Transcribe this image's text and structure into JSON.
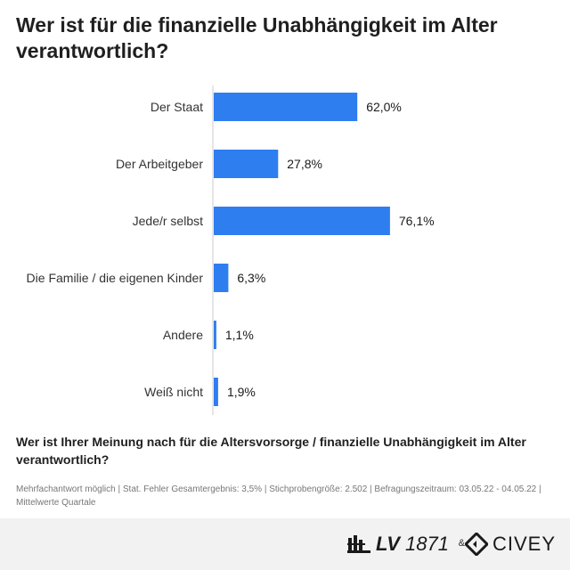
{
  "chart_data": {
    "type": "bar",
    "orientation": "horizontal",
    "title": "Wer ist für die finanzielle Unabhängigkeit im Alter verantwortlich?",
    "categories": [
      "Der Staat",
      "Der Arbeitgeber",
      "Jede/r selbst",
      "Die Familie / die eigenen Kinder",
      "Andere",
      "Weiß nicht"
    ],
    "values": [
      62.0,
      27.8,
      76.1,
      6.3,
      1.1,
      1.9
    ],
    "value_labels": [
      "62,0%",
      "27,8%",
      "76,1%",
      "6,3%",
      "1,1%",
      "1,9%"
    ],
    "xlim": [
      0,
      100
    ],
    "unit": "%",
    "bar_color": "#2f7ef0",
    "axis_color": "#cccccc",
    "grid": false,
    "legend": "none"
  },
  "question": "Wer ist Ihrer Meinung nach für die Altersvorsorge / finanzielle Unabhängigkeit im Alter verantwortlich?",
  "note": "Mehrfachantwort möglich | Stat. Fehler Gesamtergebnis: 3,5% | Stichprobengröße: 2.502 | Befragungszeitraum: 03.05.22 - 04.05.22 | Mittelwerte Quartale",
  "footer": {
    "logo_lv_prefix": "LV",
    "logo_lv_year": "1871",
    "ampersand": "&",
    "logo_civey": "CIVEY",
    "logo_lv_icon": "lv-building-icon",
    "logo_civey_icon": "civey-mark-icon"
  }
}
